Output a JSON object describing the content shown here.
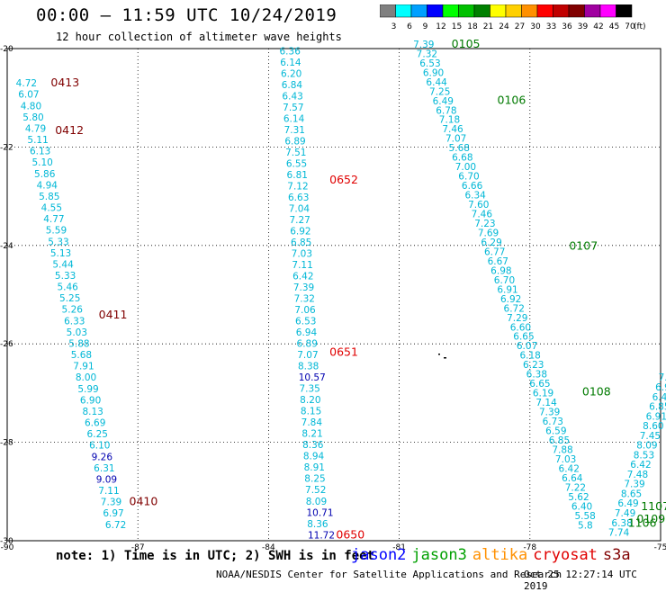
{
  "header": {
    "title": "00:00 – 11:59 UTC 10/24/2019",
    "subtitle": "12 hour collection of altimeter wave heights"
  },
  "colorbar": {
    "unit": "(ft)",
    "bins": [
      {
        "label": "3",
        "color": "#808080"
      },
      {
        "label": "6",
        "color": "#00ffff"
      },
      {
        "label": "9",
        "color": "#00a0ff"
      },
      {
        "label": "12",
        "color": "#0000ff"
      },
      {
        "label": "15",
        "color": "#00ff00"
      },
      {
        "label": "18",
        "color": "#00c000"
      },
      {
        "label": "21",
        "color": "#008000"
      },
      {
        "label": "24",
        "color": "#ffff00"
      },
      {
        "label": "27",
        "color": "#ffd000"
      },
      {
        "label": "30",
        "color": "#ff9000"
      },
      {
        "label": "33",
        "color": "#ff0000"
      },
      {
        "label": "36",
        "color": "#c00000"
      },
      {
        "label": "39",
        "color": "#800000"
      },
      {
        "label": "42",
        "color": "#a000a0"
      },
      {
        "label": "45",
        "color": "#ff00ff"
      },
      {
        "label": "70",
        "color": "#000000"
      }
    ]
  },
  "map": {
    "lon_range": [
      -90,
      -75
    ],
    "lat_range": [
      -30,
      -20
    ],
    "lon_ticks": [
      "-90",
      "-87",
      "-84",
      "-81",
      "-78",
      "-75"
    ],
    "lat_ticks": [
      "-20",
      "-22",
      "-24",
      "-26",
      "-28",
      "-30"
    ]
  },
  "colors": {
    "cyan": "#00b7d6",
    "navy": "#0000b0",
    "darkred": "#800000",
    "green": "#007a00",
    "red": "#e00000"
  },
  "passes": [
    {
      "values": [
        "4.72",
        "6.07",
        "4.80",
        "5.80",
        "4.79",
        "5.11",
        "6.13",
        "5.10",
        "5.86",
        "4.94",
        "5.85",
        "4.55",
        "4.77",
        "5.59",
        "5.33",
        "5.13",
        "5.44",
        "5.33",
        "5.46",
        "5.25",
        "5.26",
        "6.33",
        "5.03",
        "5.88",
        "5.68",
        "7.91",
        "8.00",
        "5.99",
        "6.90",
        "8.13",
        "6.69",
        "6.25",
        "6.10",
        "9.26",
        "6.31",
        "9.09",
        "7.11",
        "7.39",
        "6.97",
        "6.72"
      ],
      "colors": [
        "cyan",
        "cyan",
        "cyan",
        "cyan",
        "cyan",
        "cyan",
        "cyan",
        "cyan",
        "cyan",
        "cyan",
        "cyan",
        "cyan",
        "cyan",
        "cyan",
        "cyan",
        "cyan",
        "cyan",
        "cyan",
        "cyan",
        "cyan",
        "cyan",
        "cyan",
        "cyan",
        "cyan",
        "cyan",
        "cyan",
        "cyan",
        "cyan",
        "cyan",
        "cyan",
        "cyan",
        "cyan",
        "cyan",
        "navy",
        "cyan",
        "navy",
        "cyan",
        "cyan",
        "cyan",
        "cyan"
      ],
      "lon_start": -89.8,
      "lat_start": -20.77,
      "lon_end": -87.75,
      "lat_end": -29.74,
      "times": [
        {
          "label": "0413",
          "lon": -89.0,
          "lat": -20.77,
          "color": "darkred"
        },
        {
          "label": "0412",
          "lon": -88.9,
          "lat": -21.74,
          "color": "darkred"
        },
        {
          "label": "0411",
          "lon": -87.9,
          "lat": -25.48,
          "color": "darkred"
        },
        {
          "label": "0410",
          "lon": -87.2,
          "lat": -29.28,
          "color": "darkred"
        }
      ]
    },
    {
      "values": [
        "6.36",
        "6.14",
        "6.20",
        "6.84",
        "6.43",
        "7.57",
        "6.14",
        "7.31",
        "6.89",
        "7.51",
        "6.55",
        "6.81",
        "7.12",
        "6.63",
        "7.04",
        "7.27",
        "6.92",
        "6.85",
        "7.03",
        "7.11",
        "6.42",
        "7.39",
        "7.32",
        "7.06",
        "6.53",
        "6.94",
        "6.89",
        "7.07",
        "8.38",
        "10.57",
        "7.35",
        "8.20",
        "8.15",
        "7.84",
        "8.21",
        "8.36",
        "8.94",
        "8.91",
        "8.25",
        "7.52",
        "8.09",
        "10.71",
        "8.36",
        "11.72"
      ],
      "colors": [
        "cyan",
        "cyan",
        "cyan",
        "cyan",
        "cyan",
        "cyan",
        "cyan",
        "cyan",
        "cyan",
        "cyan",
        "cyan",
        "cyan",
        "cyan",
        "cyan",
        "cyan",
        "cyan",
        "cyan",
        "cyan",
        "cyan",
        "cyan",
        "cyan",
        "cyan",
        "cyan",
        "cyan",
        "cyan",
        "cyan",
        "cyan",
        "cyan",
        "cyan",
        "navy",
        "cyan",
        "cyan",
        "cyan",
        "cyan",
        "cyan",
        "cyan",
        "cyan",
        "cyan",
        "cyan",
        "cyan",
        "cyan",
        "navy",
        "cyan",
        "navy"
      ],
      "lon_start": -83.75,
      "lat_start": -20.12,
      "lon_end": -83.1,
      "lat_end": -29.95,
      "times": [
        {
          "label": "0652",
          "lon": -82.6,
          "lat": -22.74,
          "color": "red"
        },
        {
          "label": "0651",
          "lon": -82.6,
          "lat": -26.24,
          "color": "red"
        },
        {
          "label": "0650",
          "lon": -82.45,
          "lat": -29.95,
          "color": "red"
        }
      ]
    },
    {
      "values": [
        "7.39",
        "7.32",
        "6.53",
        "6.90",
        "6.44",
        "7.25",
        "6.49",
        "6.78",
        "7.18",
        "7.46",
        "7.07",
        "5.68",
        "6.68",
        "7.00",
        "6.70",
        "6.66",
        "6.34",
        "7.60",
        "7.46",
        "7.23",
        "7.69",
        "6.29",
        "6.77",
        "6.67",
        "6.98",
        "6.70",
        "6.91",
        "6.92",
        "6.72",
        "7.29",
        "6.60",
        "6.65",
        "6.07",
        "6.18",
        "6.23",
        "6.38",
        "6.65",
        "6.19",
        "7.14",
        "7.39",
        "6.73",
        "6.59",
        "6.85",
        "7.88",
        "7.03",
        "6.42",
        "6.64",
        "7.22",
        "5.62",
        "6.40",
        "5.58",
        "5.8"
      ],
      "colors": [
        "cyan",
        "cyan",
        "cyan",
        "cyan",
        "cyan",
        "cyan",
        "cyan",
        "cyan",
        "cyan",
        "cyan",
        "cyan",
        "cyan",
        "cyan",
        "cyan",
        "cyan",
        "cyan",
        "cyan",
        "cyan",
        "cyan",
        "cyan",
        "cyan",
        "cyan",
        "cyan",
        "cyan",
        "cyan",
        "cyan",
        "cyan",
        "cyan",
        "cyan",
        "cyan",
        "cyan",
        "cyan",
        "cyan",
        "cyan",
        "cyan",
        "cyan",
        "cyan",
        "cyan",
        "cyan",
        "cyan",
        "cyan",
        "cyan",
        "cyan",
        "cyan",
        "cyan",
        "cyan",
        "cyan",
        "cyan",
        "cyan",
        "cyan",
        "cyan",
        "cyan"
      ],
      "lon_start": -80.68,
      "lat_start": -19.98,
      "lon_end": -76.9,
      "lat_end": -29.75,
      "times": [
        {
          "label": "0105",
          "lon": -79.8,
          "lat": -19.98,
          "color": "green"
        },
        {
          "label": "0106",
          "lon": -78.75,
          "lat": -21.12,
          "color": "green"
        },
        {
          "label": "0107",
          "lon": -77.1,
          "lat": -24.09,
          "color": "green"
        },
        {
          "label": "0108",
          "lon": -76.8,
          "lat": -27.05,
          "color": "green"
        }
      ]
    },
    {
      "values": [
        "7.",
        "6.9",
        "6.4",
        "6.85",
        "6.91",
        "8.60",
        "7.45",
        "8.09",
        "8.53",
        "6.42",
        "7.48",
        "7.39",
        "8.65",
        "6.49",
        "7.49",
        "6.38",
        "7.74"
      ],
      "colors": [
        "cyan",
        "cyan",
        "cyan",
        "cyan",
        "cyan",
        "cyan",
        "cyan",
        "cyan",
        "cyan",
        "cyan",
        "cyan",
        "cyan",
        "cyan",
        "cyan",
        "cyan",
        "cyan",
        "cyan"
      ],
      "lon_start": -75.05,
      "lat_start": -26.75,
      "lon_end": -76.2,
      "lat_end": -29.9,
      "times": [
        {
          "label": "1107",
          "lon": -75.45,
          "lat": -29.38,
          "color": "green"
        },
        {
          "label": "0109",
          "lon": -75.55,
          "lat": -29.63,
          "color": "green"
        },
        {
          "label": "1106",
          "lon": -75.75,
          "lat": -29.72,
          "color": "green"
        }
      ]
    }
  ],
  "footer": {
    "note": "note: 1) Time is in UTC; 2) SWH is in feet",
    "legend": [
      {
        "label": "jason2",
        "color": "#0000ff"
      },
      {
        "label": "jason3",
        "color": "#00a000"
      },
      {
        "label": "altika",
        "color": "#ff9000"
      },
      {
        "label": "cryosat",
        "color": "#e00000"
      },
      {
        "label": "s3a",
        "color": "#800000"
      }
    ],
    "credit": "NOAA/NESDIS Center for Satellite Applications and Research",
    "timestamp": "Oct 25 12:27:14 UTC 2019"
  }
}
